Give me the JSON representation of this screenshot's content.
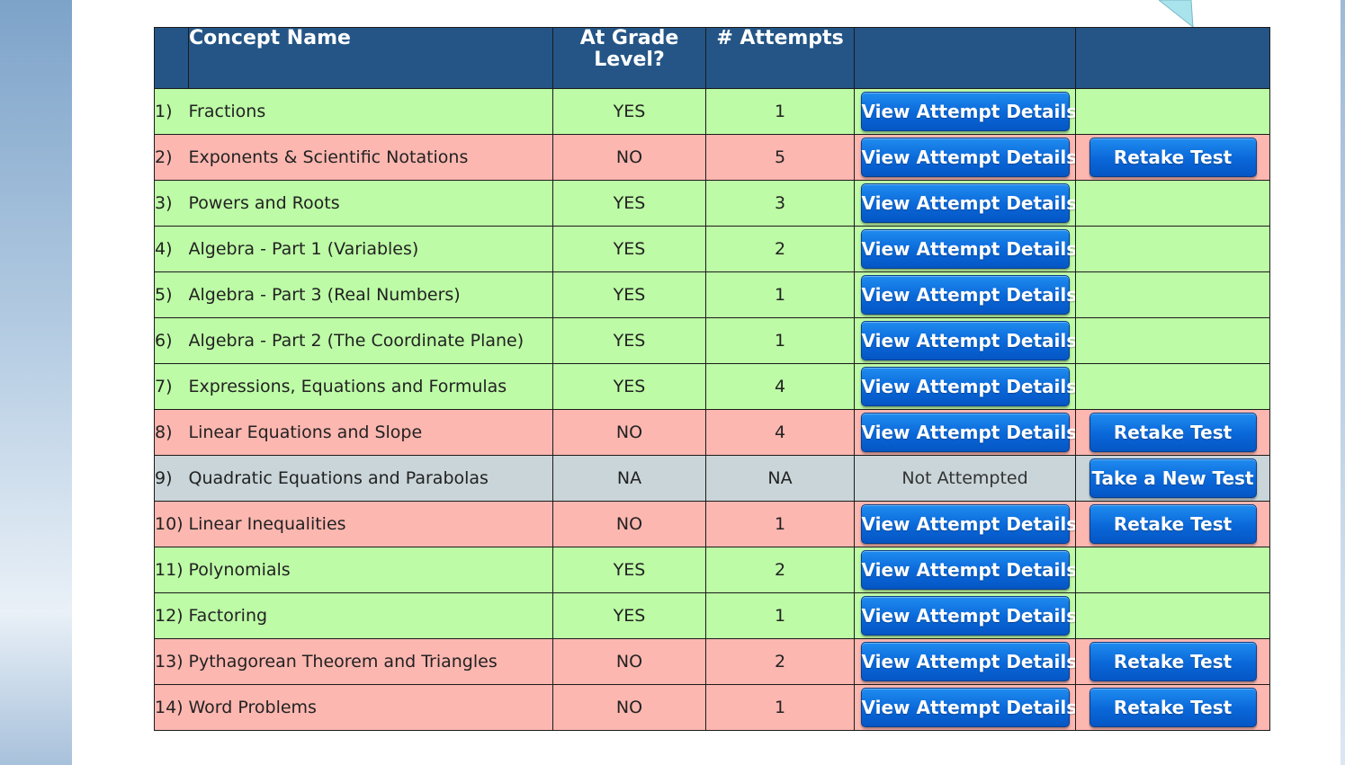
{
  "table": {
    "headers": {
      "concept_name": "Concept Name",
      "at_grade_level": "At Grade Level?",
      "attempts": "# Attempts"
    },
    "rows": [
      {
        "index": "1)",
        "name": "Fractions",
        "grade": "YES",
        "attempts": "1",
        "status": "yes",
        "detail": "View Attempt Details",
        "action": ""
      },
      {
        "index": "2)",
        "name": "Exponents & Scientific Notations",
        "grade": "NO",
        "attempts": "5",
        "status": "no",
        "detail": "View Attempt Details",
        "action": "Retake Test"
      },
      {
        "index": "3)",
        "name": "Powers and Roots",
        "grade": "YES",
        "attempts": "3",
        "status": "yes",
        "detail": "View Attempt Details",
        "action": ""
      },
      {
        "index": "4)",
        "name": "Algebra - Part 1 (Variables)",
        "grade": "YES",
        "attempts": "2",
        "status": "yes",
        "detail": "View Attempt Details",
        "action": ""
      },
      {
        "index": "5)",
        "name": "Algebra - Part 3 (Real Numbers)",
        "grade": "YES",
        "attempts": "1",
        "status": "yes",
        "detail": "View Attempt Details",
        "action": ""
      },
      {
        "index": "6)",
        "name": "Algebra - Part 2 (The Coordinate Plane)",
        "grade": "YES",
        "attempts": "1",
        "status": "yes",
        "detail": "View Attempt Details",
        "action": ""
      },
      {
        "index": "7)",
        "name": "Expressions, Equations and Formulas",
        "grade": "YES",
        "attempts": "4",
        "status": "yes",
        "detail": "View Attempt Details",
        "action": ""
      },
      {
        "index": "8)",
        "name": "Linear Equations and Slope",
        "grade": "NO",
        "attempts": "4",
        "status": "no",
        "detail": "View Attempt Details",
        "action": "Retake Test"
      },
      {
        "index": "9)",
        "name": "Quadratic Equations and Parabolas",
        "grade": "NA",
        "attempts": "NA",
        "status": "na",
        "detail": "Not Attempted",
        "action": "Take a New Test"
      },
      {
        "index": "10)",
        "name": "Linear Inequalities",
        "grade": "NO",
        "attempts": "1",
        "status": "no",
        "detail": "View Attempt Details",
        "action": "Retake Test"
      },
      {
        "index": "11)",
        "name": "Polynomials",
        "grade": "YES",
        "attempts": "2",
        "status": "yes",
        "detail": "View Attempt Details",
        "action": ""
      },
      {
        "index": "12)",
        "name": "Factoring",
        "grade": "YES",
        "attempts": "1",
        "status": "yes",
        "detail": "View Attempt Details",
        "action": ""
      },
      {
        "index": "13)",
        "name": "Pythagorean Theorem and Triangles",
        "grade": "NO",
        "attempts": "2",
        "status": "no",
        "detail": "View Attempt Details",
        "action": "Retake Test"
      },
      {
        "index": "14)",
        "name": "Word Problems",
        "grade": "NO",
        "attempts": "1",
        "status": "no",
        "detail": "View Attempt Details",
        "action": "Retake Test"
      }
    ]
  },
  "colors": {
    "header_bg": "#245586",
    "row_yes": "#bdfba6",
    "row_no": "#fcb7b0",
    "row_na": "#c9d5d9",
    "button": "#0a67d8"
  }
}
